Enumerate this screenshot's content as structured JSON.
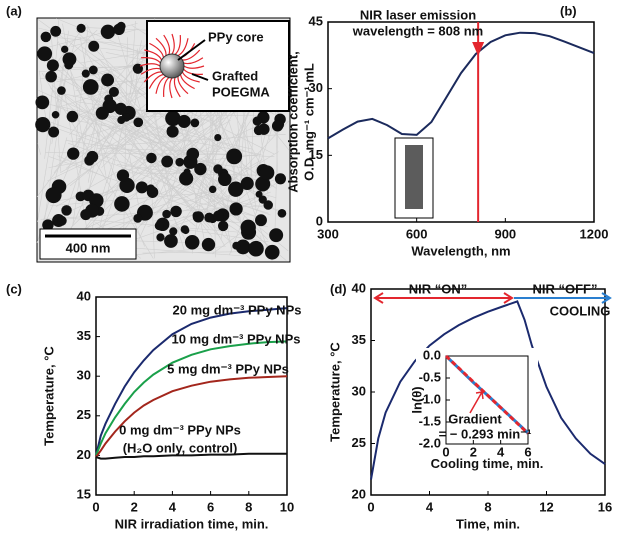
{
  "panel_a": {
    "label": "(a)",
    "inset_labels": [
      "PPy core",
      "Grafted",
      "POEGMA"
    ],
    "scale_bar": "400 nm"
  },
  "chart_data": [
    {
      "type": "line",
      "panel_label": "(b)",
      "xlabel": "Wavelength, nm",
      "ylabel": [
        "Absorption coefficient,",
        "O.D. mg⁻¹ cm⁻¹ mL"
      ],
      "xlim": [
        300,
        1200
      ],
      "xticks": [
        300,
        600,
        900,
        1200
      ],
      "ylim": [
        0,
        45
      ],
      "yticks": [
        0,
        15,
        30,
        45
      ],
      "x": [
        300,
        350,
        400,
        450,
        500,
        550,
        600,
        650,
        700,
        750,
        800,
        850,
        900,
        950,
        1000,
        1050,
        1100,
        1150,
        1200
      ],
      "series": [
        {
          "color": "#1b2a5c",
          "values": [
            18.8,
            20.8,
            22.6,
            23.2,
            21.8,
            19.8,
            19.6,
            22.5,
            28,
            33.5,
            37.8,
            40.5,
            42,
            42.6,
            42.5,
            41.8,
            40.6,
            39.3,
            38.0
          ]
        }
      ],
      "annotation": [
        "NIR laser emission",
        "wavelength = 808 nm"
      ],
      "vline": {
        "x": 808,
        "color": "#e3262e"
      }
    },
    {
      "type": "line",
      "panel_label": "(c)",
      "xlabel": "NIR irradiation time, min.",
      "ylabel": [
        "Temperature, °C"
      ],
      "xlim": [
        0,
        10
      ],
      "xticks": [
        0,
        2,
        4,
        6,
        8,
        10
      ],
      "ylim": [
        15,
        40
      ],
      "yticks": [
        15,
        20,
        25,
        30,
        35,
        40
      ],
      "x": [
        0,
        0.25,
        0.5,
        1,
        1.5,
        2,
        2.5,
        3,
        4,
        5,
        6,
        7,
        8,
        9,
        10
      ],
      "series": [
        {
          "name": "20 mg dm⁻³ PPy NPs",
          "color": "#1b2a6e",
          "values": [
            20.0,
            22.5,
            24.0,
            26.5,
            28.7,
            30.5,
            32.0,
            33.3,
            35.3,
            36.6,
            37.4,
            37.9,
            38.2,
            38.4,
            38.6
          ]
        },
        {
          "name": "10 mg dm⁻³ PPy NPs",
          "color": "#1aa04a",
          "values": [
            20.0,
            21.5,
            22.8,
            24.8,
            26.5,
            28.0,
            29.2,
            30.2,
            31.7,
            32.7,
            33.4,
            33.8,
            34.1,
            34.3,
            34.4
          ]
        },
        {
          "name": "5 mg dm⁻³ PPy NPs",
          "color": "#a3261c",
          "values": [
            19.8,
            20.6,
            21.5,
            23.0,
            24.3,
            25.4,
            26.3,
            27.0,
            28.1,
            28.8,
            29.3,
            29.6,
            29.8,
            29.9,
            30.0
          ]
        },
        {
          "name": "0 mg dm⁻³ PPy NPs",
          "color": "#111111",
          "values": [
            19.8,
            19.6,
            19.6,
            19.7,
            19.8,
            19.8,
            19.9,
            19.9,
            20.0,
            20.0,
            20.1,
            20.1,
            20.2,
            20.2,
            20.2
          ]
        }
      ],
      "annotation": [
        "(H₂O only, control)"
      ]
    },
    {
      "type": "line",
      "panel_label": "(d)",
      "xlabel": "Time, min.",
      "ylabel": [
        "Temperature, °C"
      ],
      "xlim": [
        0,
        16
      ],
      "xticks": [
        0,
        4,
        8,
        12,
        16
      ],
      "ylim": [
        20,
        40
      ],
      "yticks": [
        20,
        25,
        30,
        35,
        40
      ],
      "x": [
        0,
        0.5,
        1,
        2,
        3,
        4,
        5,
        6,
        7,
        8,
        9,
        10,
        10.5,
        11,
        12,
        13,
        14,
        15,
        16
      ],
      "series": [
        {
          "color": "#1b2a6e",
          "values": [
            21.5,
            25.5,
            28,
            31,
            33,
            34.5,
            35.6,
            36.5,
            37.2,
            37.8,
            38.3,
            38.8,
            37.0,
            34.5,
            30.5,
            27.5,
            25.5,
            24.0,
            23.0
          ]
        }
      ],
      "annotation": [
        "NIR “ON”",
        "NIR “OFF”",
        "COOLING"
      ]
    },
    {
      "type": "line",
      "xlabel": "Cooling time, min.",
      "ylabel": [
        "ln(θ)"
      ],
      "xlim": [
        0,
        6
      ],
      "xticks": [
        0,
        2,
        4,
        6
      ],
      "ylim": [
        -2,
        0
      ],
      "yticks": [
        {
          "value": 0,
          "label": "0.0"
        },
        -0.5,
        {
          "value": -1,
          "label": "-1.0"
        },
        -1.5,
        {
          "value": -2,
          "label": "-2.0"
        }
      ],
      "x": [
        0,
        1,
        2,
        3,
        4,
        5,
        6
      ],
      "series": [
        {
          "color": "#2a7fd0",
          "values": [
            0,
            -0.3,
            -0.6,
            -0.88,
            -1.17,
            -1.46,
            -1.75
          ]
        },
        {
          "color": "#e3262e",
          "style": "dashed",
          "values": [
            0,
            -0.293,
            -0.586,
            -0.879,
            -1.172,
            -1.465,
            -1.758
          ]
        }
      ],
      "annotation": [
        "Gradient",
        "= − 0.293 min⁻¹"
      ]
    }
  ]
}
